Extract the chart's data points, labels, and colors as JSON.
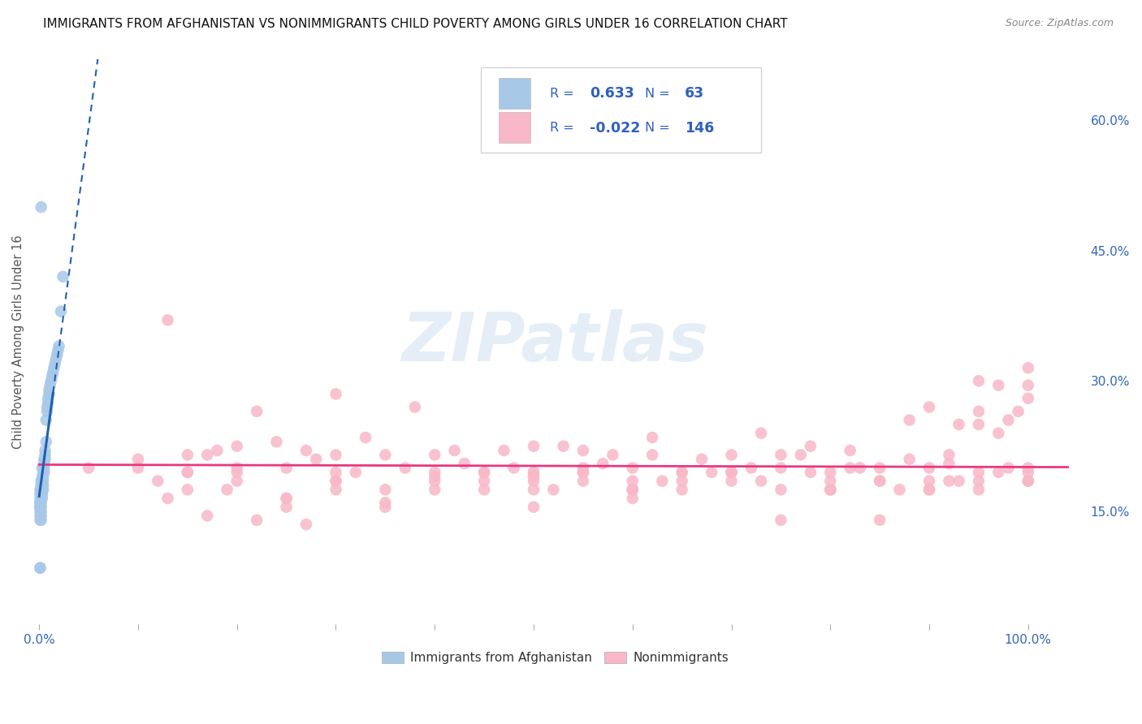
{
  "title": "IMMIGRANTS FROM AFGHANISTAN VS NONIMMIGRANTS CHILD POVERTY AMONG GIRLS UNDER 16 CORRELATION CHART",
  "source": "Source: ZipAtlas.com",
  "ylabel": "Child Poverty Among Girls Under 16",
  "legend_blue_r": "0.633",
  "legend_blue_n": "63",
  "legend_pink_r": "-0.022",
  "legend_pink_n": "146",
  "blue_color": "#a8c8e8",
  "pink_color": "#f8b8c8",
  "blue_line_color": "#2060b0",
  "pink_line_color": "#e83880",
  "text_blue_color": "#3060c0",
  "blue_r": 0.633,
  "pink_r": -0.022,
  "watermark": "ZIPatlas",
  "blue_scatter_x": [
    0.001,
    0.001,
    0.001,
    0.001,
    0.001,
    0.001,
    0.001,
    0.001,
    0.001,
    0.001,
    0.002,
    0.002,
    0.002,
    0.002,
    0.002,
    0.002,
    0.002,
    0.002,
    0.002,
    0.002,
    0.003,
    0.003,
    0.003,
    0.003,
    0.003,
    0.003,
    0.003,
    0.004,
    0.004,
    0.004,
    0.004,
    0.004,
    0.005,
    0.005,
    0.005,
    0.005,
    0.006,
    0.006,
    0.006,
    0.007,
    0.007,
    0.008,
    0.008,
    0.009,
    0.009,
    0.01,
    0.01,
    0.011,
    0.012,
    0.013,
    0.014,
    0.015,
    0.016,
    0.017,
    0.018,
    0.019,
    0.02,
    0.022,
    0.024,
    0.002,
    0.001,
    0.001,
    0.001
  ],
  "blue_scatter_y": [
    0.165,
    0.16,
    0.155,
    0.15,
    0.145,
    0.14,
    0.155,
    0.16,
    0.17,
    0.175,
    0.18,
    0.175,
    0.17,
    0.165,
    0.16,
    0.155,
    0.15,
    0.145,
    0.14,
    0.185,
    0.19,
    0.185,
    0.18,
    0.175,
    0.17,
    0.165,
    0.2,
    0.195,
    0.19,
    0.185,
    0.18,
    0.175,
    0.21,
    0.205,
    0.2,
    0.195,
    0.22,
    0.215,
    0.21,
    0.23,
    0.255,
    0.265,
    0.27,
    0.275,
    0.28,
    0.285,
    0.29,
    0.295,
    0.3,
    0.305,
    0.31,
    0.315,
    0.32,
    0.325,
    0.33,
    0.335,
    0.34,
    0.38,
    0.42,
    0.5,
    0.155,
    0.085,
    0.085
  ],
  "pink_scatter_x": [
    0.05,
    0.1,
    0.12,
    0.13,
    0.15,
    0.15,
    0.17,
    0.18,
    0.19,
    0.2,
    0.2,
    0.22,
    0.24,
    0.25,
    0.25,
    0.27,
    0.28,
    0.3,
    0.3,
    0.32,
    0.33,
    0.35,
    0.35,
    0.37,
    0.38,
    0.4,
    0.4,
    0.42,
    0.43,
    0.45,
    0.45,
    0.47,
    0.48,
    0.5,
    0.5,
    0.52,
    0.53,
    0.55,
    0.55,
    0.57,
    0.58,
    0.6,
    0.6,
    0.62,
    0.63,
    0.65,
    0.65,
    0.67,
    0.68,
    0.7,
    0.7,
    0.72,
    0.73,
    0.75,
    0.75,
    0.77,
    0.78,
    0.8,
    0.8,
    0.82,
    0.83,
    0.85,
    0.85,
    0.87,
    0.88,
    0.9,
    0.9,
    0.92,
    0.93,
    0.95,
    0.95,
    0.97,
    0.98,
    1.0,
    1.0,
    0.15,
    0.2,
    0.25,
    0.3,
    0.35,
    0.4,
    0.45,
    0.5,
    0.55,
    0.6,
    0.65,
    0.7,
    0.75,
    0.8,
    0.85,
    0.9,
    0.95,
    1.0,
    0.2,
    0.3,
    0.4,
    0.5,
    0.6,
    0.7,
    0.8,
    0.9,
    1.0,
    0.1,
    0.25,
    0.35,
    0.5,
    0.6,
    0.75,
    0.85,
    1.0,
    0.15,
    0.3,
    0.45,
    0.55,
    0.65,
    0.8,
    0.92,
    0.4,
    0.5,
    0.6,
    0.7,
    0.82,
    0.92,
    0.97,
    0.99,
    1.0,
    0.95,
    0.9,
    0.88,
    0.95,
    0.98,
    1.0,
    1.0,
    0.97,
    0.95,
    0.93,
    0.3,
    0.5,
    0.13,
    0.17,
    0.22,
    0.27,
    0.55,
    0.62,
    0.73,
    0.78
  ],
  "pink_scatter_y": [
    0.2,
    0.21,
    0.185,
    0.37,
    0.175,
    0.195,
    0.215,
    0.22,
    0.175,
    0.225,
    0.195,
    0.265,
    0.23,
    0.2,
    0.165,
    0.22,
    0.21,
    0.285,
    0.195,
    0.195,
    0.235,
    0.215,
    0.175,
    0.2,
    0.27,
    0.215,
    0.19,
    0.22,
    0.205,
    0.195,
    0.175,
    0.22,
    0.2,
    0.225,
    0.195,
    0.175,
    0.225,
    0.22,
    0.195,
    0.205,
    0.215,
    0.2,
    0.175,
    0.215,
    0.185,
    0.195,
    0.175,
    0.21,
    0.195,
    0.215,
    0.195,
    0.2,
    0.185,
    0.2,
    0.215,
    0.215,
    0.195,
    0.195,
    0.175,
    0.2,
    0.2,
    0.185,
    0.2,
    0.175,
    0.21,
    0.185,
    0.2,
    0.205,
    0.185,
    0.195,
    0.175,
    0.195,
    0.2,
    0.185,
    0.195,
    0.215,
    0.185,
    0.165,
    0.185,
    0.16,
    0.195,
    0.185,
    0.185,
    0.195,
    0.185,
    0.185,
    0.195,
    0.175,
    0.185,
    0.185,
    0.175,
    0.185,
    0.185,
    0.2,
    0.175,
    0.185,
    0.175,
    0.175,
    0.185,
    0.175,
    0.175,
    0.185,
    0.2,
    0.155,
    0.155,
    0.155,
    0.165,
    0.14,
    0.14,
    0.2,
    0.195,
    0.185,
    0.195,
    0.185,
    0.195,
    0.175,
    0.185,
    0.175,
    0.195,
    0.175,
    0.195,
    0.22,
    0.215,
    0.24,
    0.265,
    0.28,
    0.3,
    0.27,
    0.255,
    0.25,
    0.255,
    0.295,
    0.315,
    0.295,
    0.265,
    0.25,
    0.215,
    0.19,
    0.165,
    0.145,
    0.14,
    0.135,
    0.2,
    0.235,
    0.24,
    0.225
  ]
}
